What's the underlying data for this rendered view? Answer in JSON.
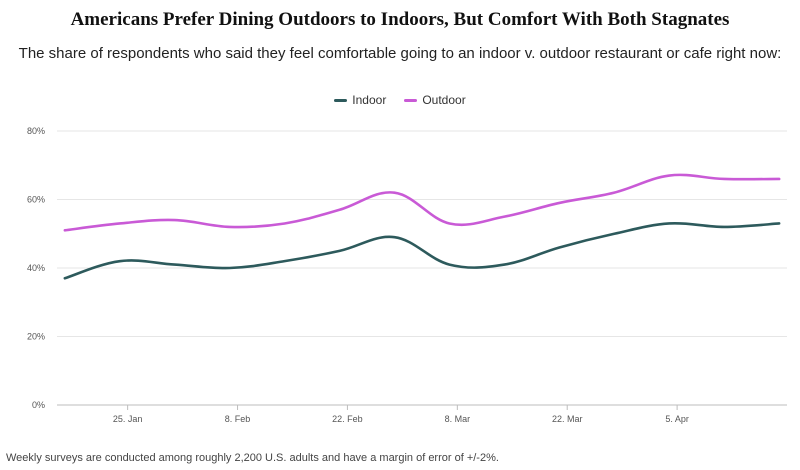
{
  "chart_data": {
    "type": "line",
    "title": "Americans Prefer Dining Outdoors to Indoors, But Comfort With Both Stagnates",
    "subtitle": "The share of respondents who said they feel comfortable going to an indoor v. outdoor restaurant or cafe right now:",
    "xlabel": "",
    "ylabel": "",
    "ylim": [
      0,
      80
    ],
    "yticks": [
      "0%",
      "20%",
      "40%",
      "60%",
      "80%"
    ],
    "ytick_values": [
      0,
      20,
      40,
      60,
      80
    ],
    "x_tick_labels": [
      "25. Jan",
      "8. Feb",
      "22. Feb",
      "8. Mar",
      "22. Mar",
      "5. Apr"
    ],
    "x_tick_days": [
      25,
      39,
      53,
      67,
      81,
      95
    ],
    "x_range_days": [
      16,
      109
    ],
    "legend_position": "top-center",
    "grid": true,
    "series": [
      {
        "name": "Indoor",
        "color": "#2d5a5c",
        "x_days": [
          17,
          24,
          31,
          38,
          45,
          52,
          59,
          66,
          73,
          80,
          87,
          94,
          101,
          108
        ],
        "values": [
          37,
          42,
          41,
          40,
          42,
          45,
          49,
          41,
          41,
          46,
          50,
          53,
          52,
          53
        ]
      },
      {
        "name": "Outdoor",
        "color": "#c95ad6",
        "x_days": [
          17,
          24,
          31,
          38,
          45,
          52,
          59,
          66,
          73,
          80,
          87,
          94,
          101,
          108
        ],
        "values": [
          51,
          53,
          54,
          52,
          53,
          57,
          62,
          53,
          55,
          59,
          62,
          67,
          66,
          66
        ]
      }
    ]
  },
  "footer": {
    "source": "Weekly surveys are conducted among roughly 2,200 U.S. adults and have a margin of error of +/-2%."
  }
}
